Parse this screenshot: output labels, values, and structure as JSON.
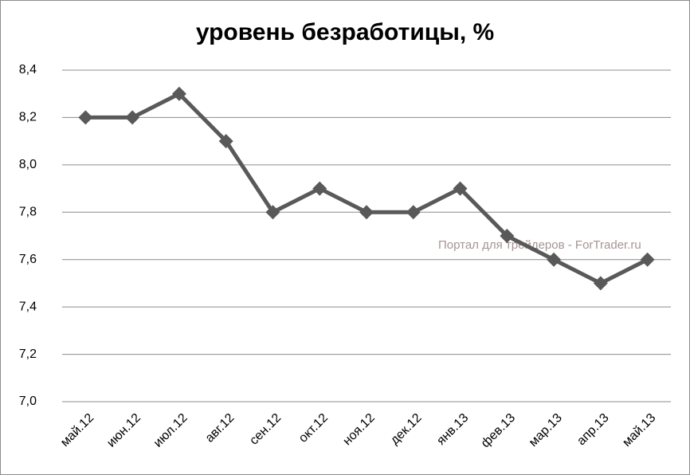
{
  "chart_data": {
    "type": "line",
    "title": "уровень безработицы, %",
    "categories": [
      "май.12",
      "июн.12",
      "июл.12",
      "авг.12",
      "сен.12",
      "окт.12",
      "ноя.12",
      "дек.12",
      "янв.13",
      "фев.13",
      "мар.13",
      "апр.13",
      "май.13"
    ],
    "values": [
      8.2,
      8.2,
      8.3,
      8.1,
      7.8,
      7.9,
      7.8,
      7.8,
      7.9,
      7.7,
      7.6,
      7.5,
      7.6
    ],
    "color": "#595959",
    "ylim": [
      7.0,
      8.4
    ],
    "yticks": [
      {
        "value": 7.0,
        "label": "7,0"
      },
      {
        "value": 7.2,
        "label": "7,2"
      },
      {
        "value": 7.4,
        "label": "7,4"
      },
      {
        "value": 7.6,
        "label": "7,6"
      },
      {
        "value": 7.8,
        "label": "7,8"
      },
      {
        "value": 8.0,
        "label": "8,0"
      },
      {
        "value": 8.2,
        "label": "8,2"
      },
      {
        "value": 8.4,
        "label": "8,4"
      }
    ],
    "grid": true,
    "annotation": "Портал для трейдеров - ForTrader.ru"
  }
}
